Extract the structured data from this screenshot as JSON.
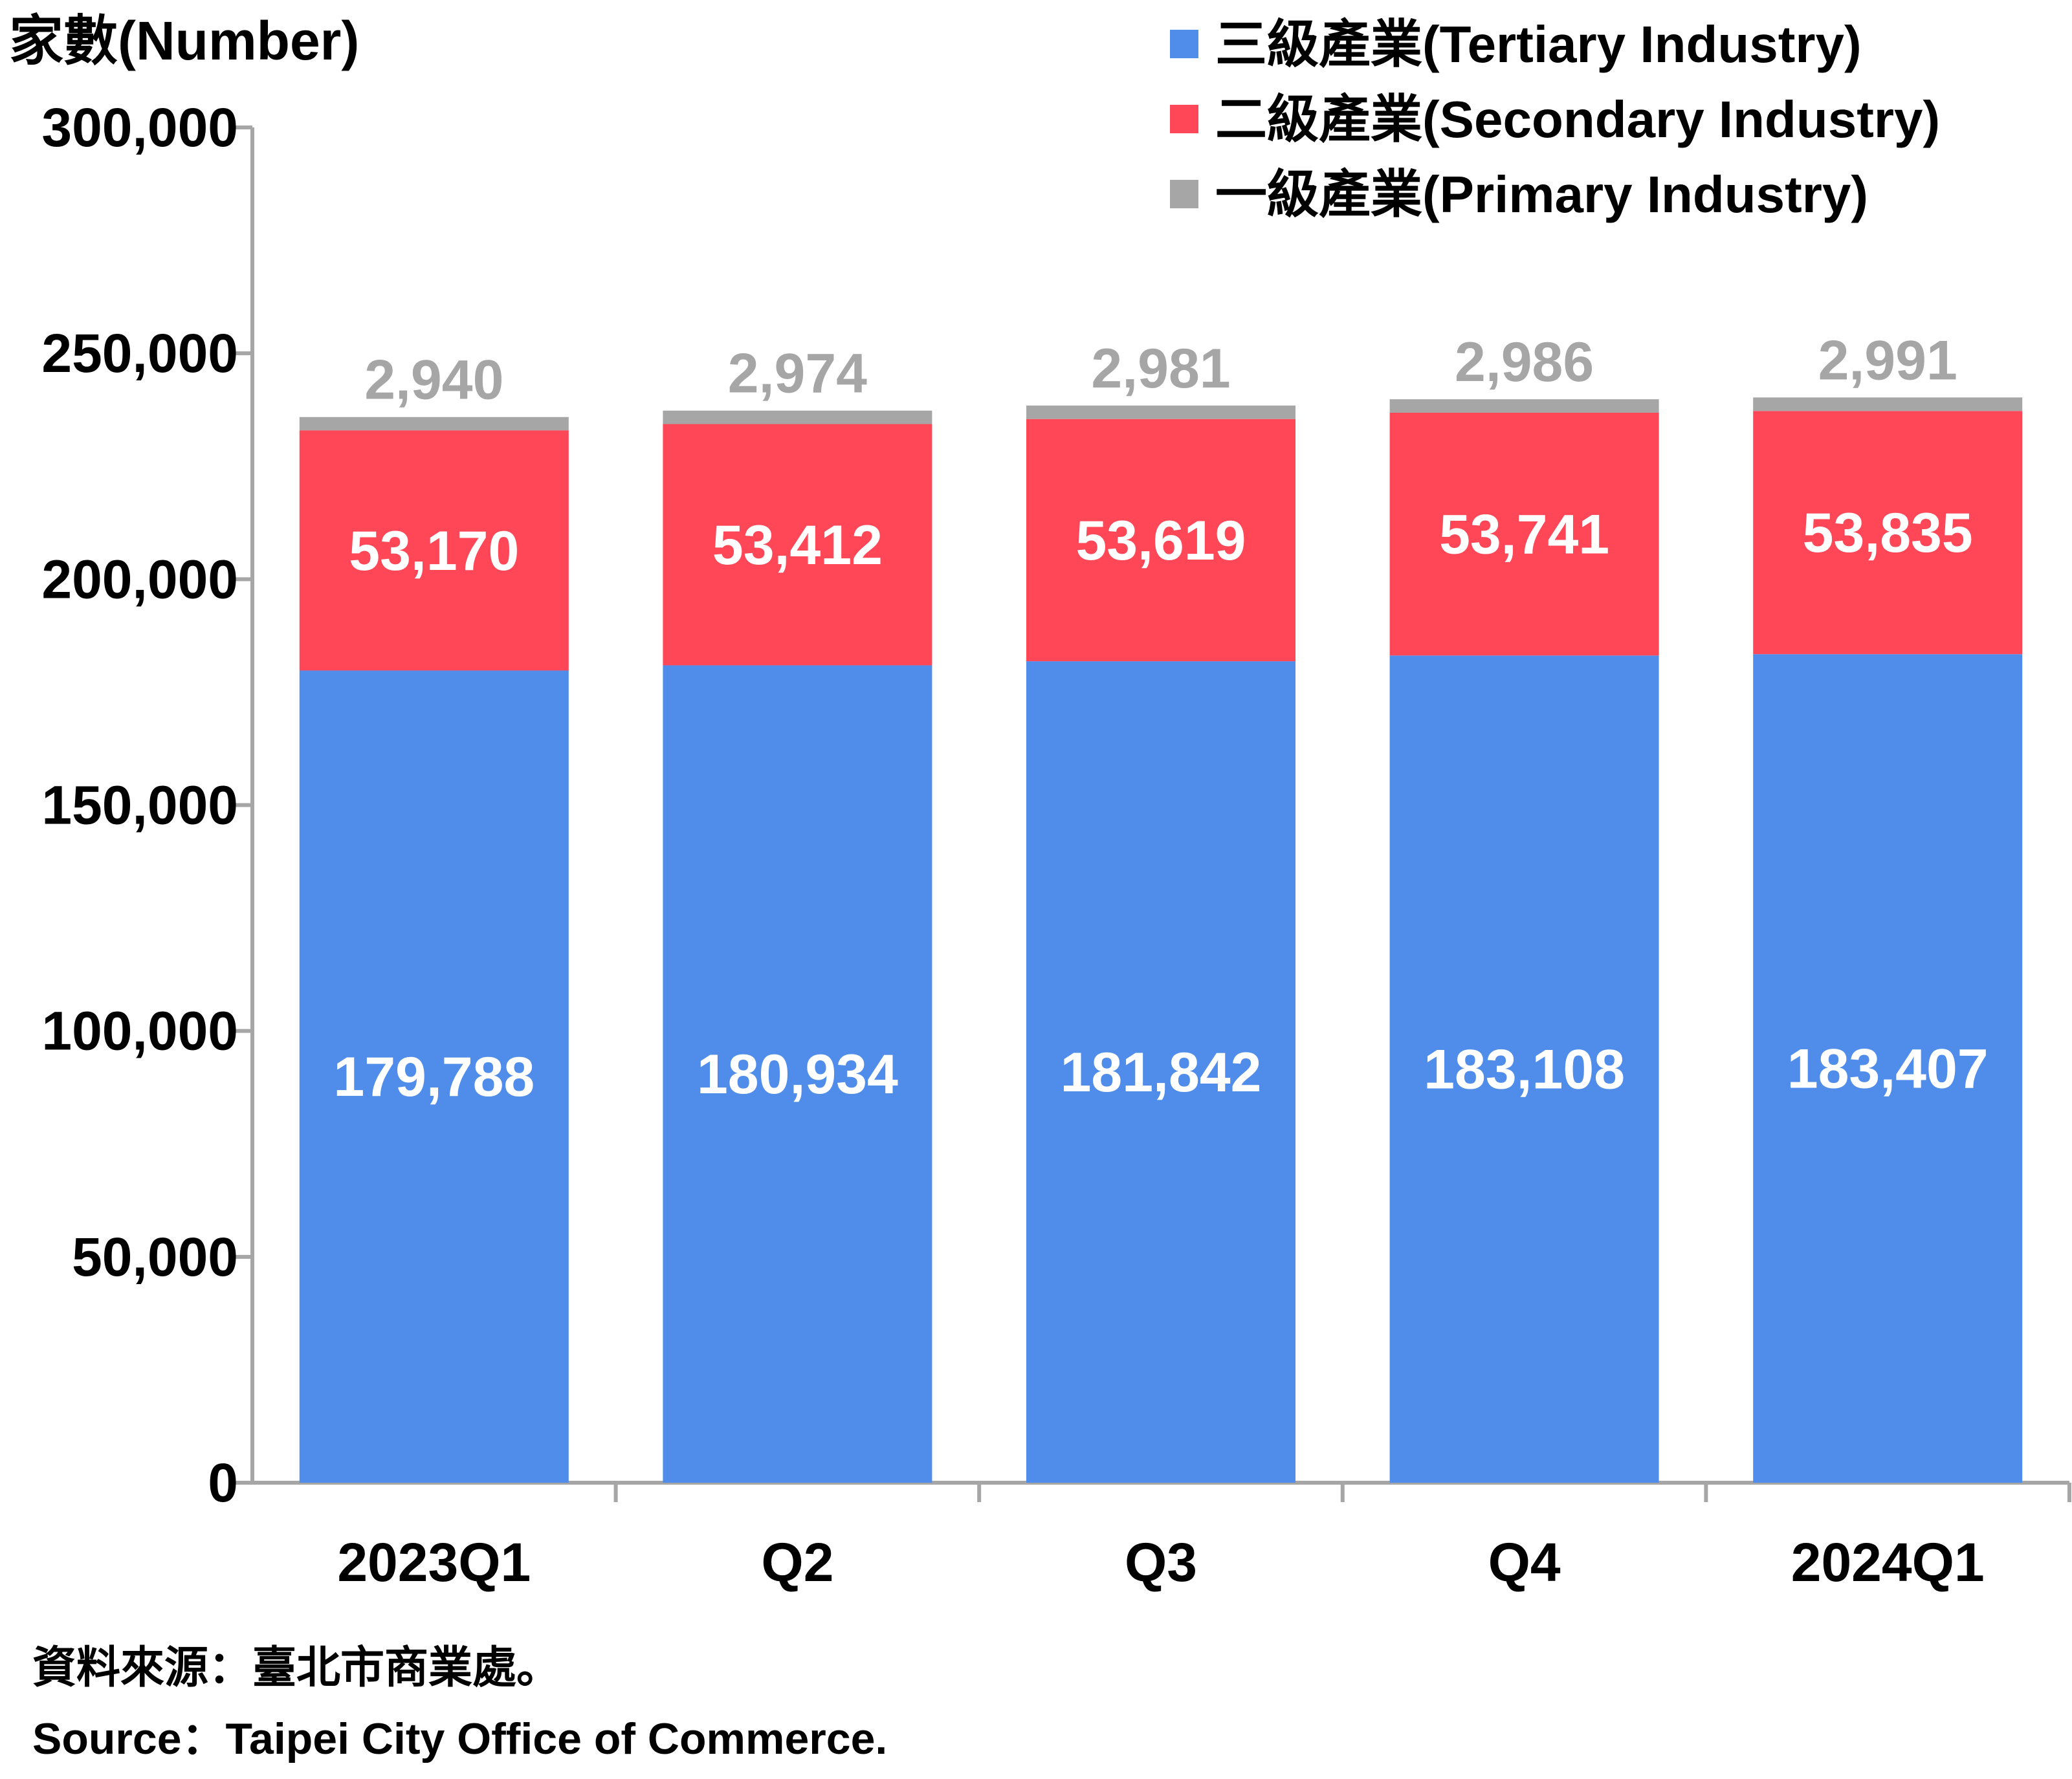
{
  "chart_data": {
    "type": "bar",
    "stacked": true,
    "ylabel": "家數(Number)",
    "ylim": [
      0,
      300000
    ],
    "yticks": [
      0,
      50000,
      100000,
      150000,
      200000,
      250000,
      300000
    ],
    "ytick_labels": [
      "0",
      "50,000",
      "100,000",
      "150,000",
      "200,000",
      "250,000",
      "300,000"
    ],
    "categories": [
      "2023Q1",
      "Q2",
      "Q3",
      "Q4",
      "2024Q1"
    ],
    "series": [
      {
        "name": "三級產業(Tertiary Industry)",
        "color": "#508DEB",
        "label_color": "#FFFFFF",
        "values": [
          179788,
          180934,
          181842,
          183108,
          183407
        ],
        "labels": [
          "179,788",
          "180,934",
          "181,842",
          "183,108",
          "183,407"
        ]
      },
      {
        "name": "二級產業(Secondary Industry)",
        "color": "#FF4757",
        "label_color": "#FFFFFF",
        "values": [
          53170,
          53412,
          53619,
          53741,
          53835
        ],
        "labels": [
          "53,170",
          "53,412",
          "53,619",
          "53,741",
          "53,835"
        ]
      },
      {
        "name": "一級產業(Primary Industry)",
        "color": "#A6A6A6",
        "label_color": "#A6A6A6",
        "values": [
          2940,
          2974,
          2981,
          2986,
          2991
        ],
        "labels": [
          "2,940",
          "2,974",
          "2,981",
          "2,986",
          "2,991"
        ]
      }
    ],
    "legend_position": "top-right",
    "grid": false
  },
  "source": {
    "zh": "資料來源：臺北市商業處。",
    "en": "Source：Taipei City Office of Commerce."
  }
}
